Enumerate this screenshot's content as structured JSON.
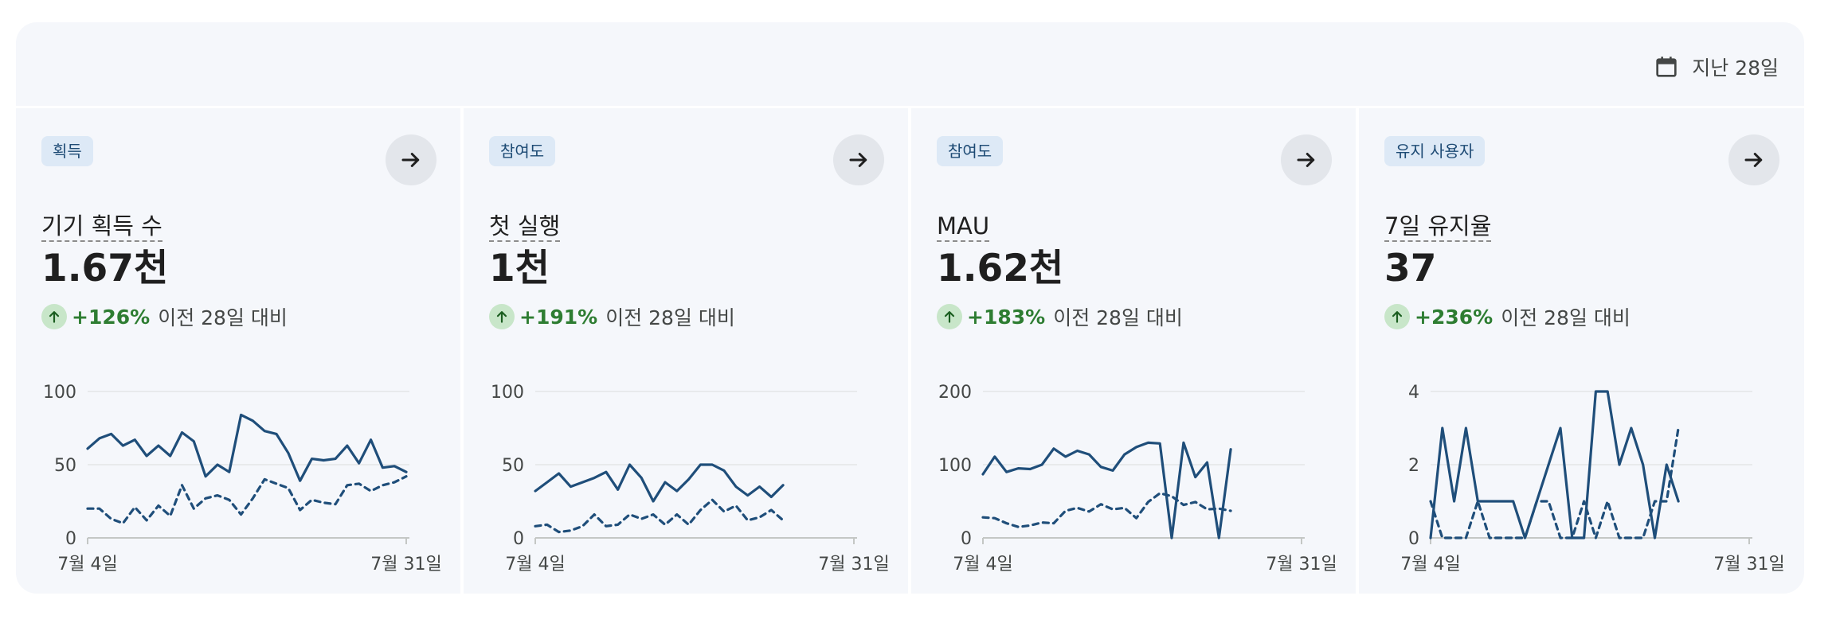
{
  "header": {
    "date_range_label": "지난 28일",
    "date_range_icon": "calendar-icon"
  },
  "cards": [
    {
      "category": "획득",
      "metric": "기기 획득 수",
      "value": "1.67천",
      "change_pct": "+126%",
      "change_text": "이전 28일 대비",
      "arrow_icon": "arrow-right-icon",
      "trend_icon": "arrow-up-icon"
    },
    {
      "category": "참여도",
      "metric": "첫 실행",
      "value": "1천",
      "change_pct": "+191%",
      "change_text": "이전 28일 대비",
      "arrow_icon": "arrow-right-icon",
      "trend_icon": "arrow-up-icon"
    },
    {
      "category": "참여도",
      "metric": "MAU",
      "value": "1.62천",
      "change_pct": "+183%",
      "change_text": "이전 28일 대비",
      "arrow_icon": "arrow-right-icon",
      "trend_icon": "arrow-up-icon"
    },
    {
      "category": "유지 사용자",
      "metric": "7일 유지율",
      "value": "37",
      "change_pct": "+236%",
      "change_text": "이전 28일 대비",
      "arrow_icon": "arrow-right-icon",
      "trend_icon": "arrow-up-icon"
    }
  ],
  "colors": {
    "series": "#1f4e7a",
    "positive": "#2e7d32",
    "positive_bg": "#c8e6c9",
    "badge_bg": "#dde9f6",
    "badge_text": "#1d4a74",
    "panel_bg": "#f5f7fb"
  },
  "chart_data": [
    {
      "type": "line",
      "x_tick_labels": [
        "7월 4일",
        "7월 31일"
      ],
      "y_ticks": [
        0,
        50,
        100
      ],
      "ylim": [
        0,
        100
      ],
      "grid": true,
      "series": [
        {
          "style": "solid",
          "values": [
            61,
            68,
            71,
            63,
            67,
            56,
            63,
            56,
            72,
            66,
            42,
            50,
            45,
            84,
            80,
            73,
            71,
            58,
            39,
            54,
            53,
            54,
            63,
            51,
            67,
            48,
            49,
            45
          ]
        },
        {
          "style": "dashed",
          "values": [
            20,
            20,
            13,
            10,
            21,
            12,
            22,
            15,
            36,
            20,
            27,
            29,
            26,
            16,
            27,
            40,
            37,
            34,
            19,
            26,
            24,
            23,
            36,
            37,
            32,
            36,
            38,
            42
          ]
        }
      ]
    },
    {
      "type": "line",
      "x_tick_labels": [
        "7월 4일",
        "7월 31일"
      ],
      "y_ticks": [
        0,
        50,
        100
      ],
      "ylim": [
        0,
        100
      ],
      "grid": true,
      "series": [
        {
          "style": "solid",
          "values": [
            32,
            38,
            44,
            35,
            38,
            41,
            45,
            33,
            50,
            41,
            25,
            38,
            32,
            40,
            50,
            50,
            46,
            35,
            29,
            35,
            28,
            36
          ]
        },
        {
          "style": "dashed",
          "values": [
            8,
            9,
            4,
            5,
            8,
            16,
            8,
            9,
            16,
            13,
            16,
            9,
            16,
            9,
            19,
            26,
            18,
            22,
            12,
            14,
            19,
            12
          ]
        }
      ]
    },
    {
      "type": "line",
      "x_tick_labels": [
        "7월 4일",
        "7월 31일"
      ],
      "y_ticks": [
        0,
        100,
        200
      ],
      "ylim": [
        0,
        200
      ],
      "grid": true,
      "series": [
        {
          "style": "solid",
          "values": [
            87,
            111,
            90,
            95,
            94,
            100,
            122,
            111,
            119,
            114,
            97,
            92,
            114,
            124,
            130,
            129,
            0,
            130,
            83,
            103,
            0,
            121
          ]
        },
        {
          "style": "dashed",
          "values": [
            28,
            27,
            20,
            15,
            17,
            21,
            20,
            37,
            41,
            36,
            46,
            39,
            41,
            27,
            49,
            61,
            57,
            45,
            49,
            39,
            40,
            37
          ]
        }
      ]
    },
    {
      "type": "line",
      "x_tick_labels": [
        "7월 4일",
        "7월 31일"
      ],
      "y_ticks": [
        0,
        2,
        4
      ],
      "ylim": [
        0,
        4
      ],
      "grid": true,
      "series": [
        {
          "style": "solid",
          "values": [
            0,
            3,
            1,
            3,
            1,
            1,
            1,
            1,
            0,
            1,
            2,
            3,
            0,
            0,
            4,
            4,
            2,
            3,
            2,
            0,
            2,
            1
          ]
        },
        {
          "style": "dashed",
          "values": [
            1,
            0,
            0,
            0,
            1,
            0,
            0,
            0,
            0,
            1,
            1,
            0,
            0,
            1,
            0,
            1,
            0,
            0,
            0,
            1,
            1,
            3
          ]
        }
      ]
    }
  ]
}
